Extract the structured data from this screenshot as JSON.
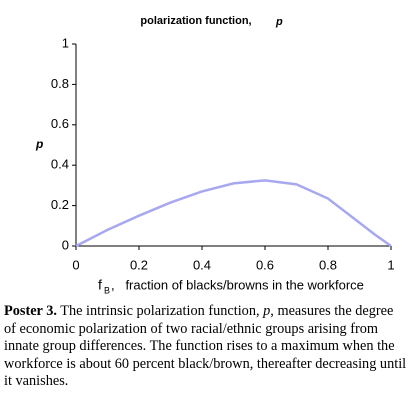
{
  "chart_data": {
    "type": "line",
    "title": "polarization function,",
    "title_symbol": "p",
    "y_label": "p",
    "x_label_symbol": "f",
    "x_label_subscript": "B",
    "x_label": ",   fraction of blacks/browns in the workforce",
    "x": [
      0,
      0.1,
      0.2,
      0.3,
      0.4,
      0.5,
      0.6,
      0.7,
      0.8,
      0.9,
      0.95,
      1
    ],
    "values": [
      0,
      0.08,
      0.15,
      0.215,
      0.27,
      0.31,
      0.325,
      0.305,
      0.235,
      0.115,
      0.055,
      0
    ],
    "color": "#a8a8f0",
    "xlim": [
      0,
      1
    ],
    "xticks": [
      0,
      0.2,
      0.4,
      0.6,
      0.8,
      1
    ],
    "ylim": [
      0,
      1
    ],
    "yticks": [
      0,
      0.2,
      0.4,
      0.6,
      0.8,
      1
    ],
    "grid": false
  },
  "caption": {
    "label": "Poster 3.",
    "text_before": " The intrinsic polarization function, ",
    "symbol": "p",
    "text_after": ", measures the degree of economic polarization of two racial/ethnic groups arising from innate group differences. The function rises to a maximum when the workforce is about 60 percent black/brown, thereafter decreasing until it vanishes."
  }
}
